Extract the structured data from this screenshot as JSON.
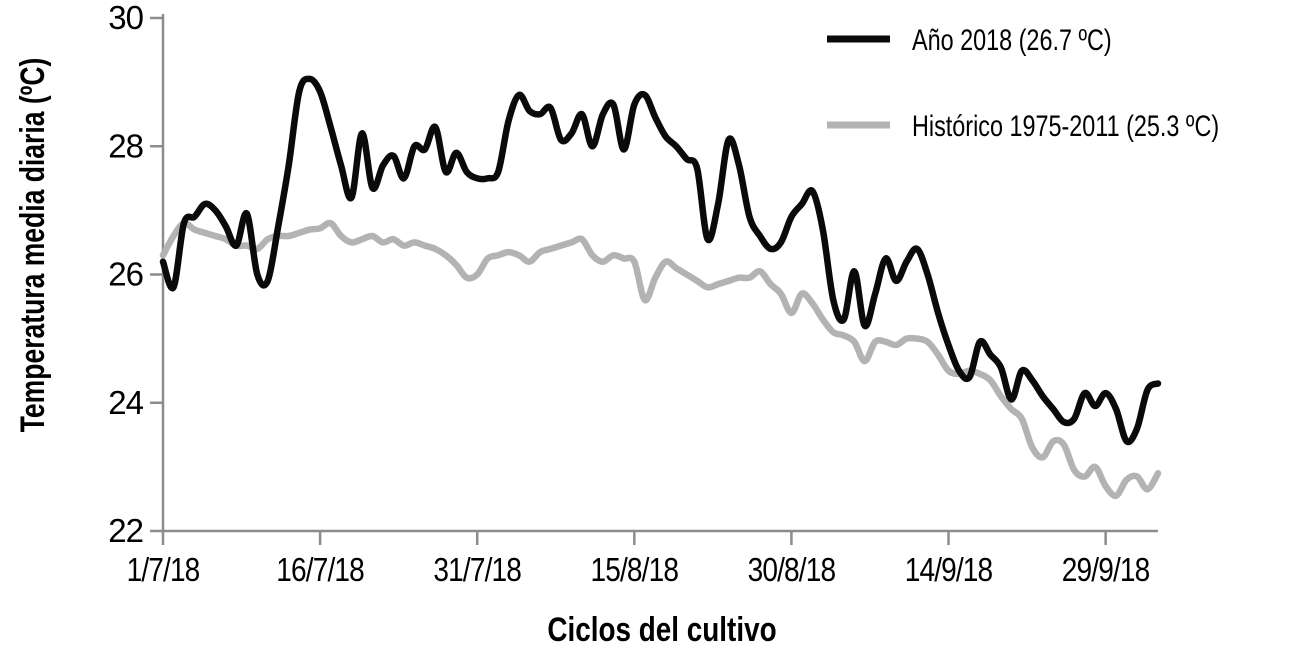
{
  "y_axis": {
    "title": "Temperatura media diaria (ºC)",
    "tick_labels": [
      "30",
      "28",
      "26",
      "24",
      "22"
    ],
    "tick_values": [
      30,
      28,
      26,
      24,
      22
    ]
  },
  "x_axis": {
    "title": "Ciclos del cultivo",
    "tick_labels": [
      "1/7/18",
      "16/7/18",
      "31/7/18",
      "15/8/18",
      "30/8/18",
      "14/9/18",
      "29/9/18"
    ],
    "tick_days": [
      0,
      15,
      30,
      45,
      60,
      75,
      90
    ]
  },
  "legend": {
    "position": "top-right",
    "items": [
      {
        "label": "Año 2018 (26.7 ºC)",
        "color": "#0a0a0a"
      },
      {
        "label": "Histórico 1975-2011 (25.3 ºC)",
        "color": "#b3b3b3"
      }
    ]
  },
  "colors": {
    "series_2018": "#0a0a0a",
    "series_historic": "#b3b3b3",
    "axis": "#8c8c8c",
    "text": "#000000",
    "background": "#ffffff"
  },
  "chart_data": {
    "type": "line",
    "title": "",
    "xlabel": "Ciclos del cultivo",
    "ylabel": "Temperatura media diaria (ºC)",
    "ylim": [
      22,
      30
    ],
    "grid": false,
    "legend_position": "top-right",
    "x_start": "1/7/18",
    "x_end": "4/10/18",
    "x_step_days": 1,
    "x_tick_labels": [
      "1/7/18",
      "16/7/18",
      "31/7/18",
      "15/8/18",
      "30/8/18",
      "14/9/18",
      "29/9/18"
    ],
    "series": [
      {
        "name": "Año 2018 (26.7 ºC)",
        "mean_c": 26.7,
        "color": "#0a0a0a",
        "values": [
          26.2,
          25.8,
          26.8,
          26.9,
          27.1,
          27.0,
          26.75,
          26.45,
          26.95,
          26.0,
          25.9,
          26.75,
          27.7,
          28.85,
          29.05,
          28.85,
          28.3,
          27.7,
          27.2,
          28.2,
          27.35,
          27.7,
          27.85,
          27.5,
          28.0,
          27.95,
          28.3,
          27.6,
          27.9,
          27.6,
          27.5,
          27.5,
          27.6,
          28.4,
          28.8,
          28.55,
          28.5,
          28.6,
          28.1,
          28.2,
          28.5,
          28.0,
          28.5,
          28.65,
          27.95,
          28.65,
          28.8,
          28.45,
          28.15,
          28.0,
          27.8,
          27.65,
          26.55,
          27.1,
          28.1,
          27.7,
          26.9,
          26.6,
          26.4,
          26.5,
          26.9,
          27.1,
          27.3,
          26.7,
          25.6,
          25.3,
          26.05,
          25.2,
          25.7,
          26.25,
          25.9,
          26.2,
          26.4,
          26.0,
          25.4,
          24.9,
          24.5,
          24.4,
          24.95,
          24.75,
          24.55,
          24.05,
          24.5,
          24.35,
          24.1,
          23.9,
          23.7,
          23.75,
          24.15,
          23.95,
          24.15,
          23.9,
          23.4,
          23.6,
          24.2,
          24.3
        ]
      },
      {
        "name": "Histórico 1975-2011 (25.3 ºC)",
        "mean_c": 25.3,
        "color": "#b3b3b3",
        "values": [
          26.3,
          26.6,
          26.8,
          26.7,
          26.65,
          26.6,
          26.55,
          26.45,
          26.45,
          26.4,
          26.55,
          26.6,
          26.6,
          26.65,
          26.7,
          26.72,
          26.8,
          26.6,
          26.5,
          26.55,
          26.6,
          26.5,
          26.55,
          26.45,
          26.5,
          26.45,
          26.4,
          26.3,
          26.15,
          25.95,
          26.0,
          26.25,
          26.3,
          26.35,
          26.3,
          26.2,
          26.35,
          26.4,
          26.45,
          26.5,
          26.55,
          26.3,
          26.2,
          26.3,
          26.25,
          26.2,
          25.6,
          25.95,
          26.2,
          26.1,
          26.0,
          25.9,
          25.8,
          25.85,
          25.9,
          25.95,
          25.95,
          26.05,
          25.85,
          25.7,
          25.4,
          25.7,
          25.55,
          25.3,
          25.1,
          25.05,
          24.95,
          24.65,
          24.95,
          24.95,
          24.9,
          25.0,
          25.0,
          24.95,
          24.75,
          24.5,
          24.45,
          24.5,
          24.45,
          24.35,
          24.1,
          23.9,
          23.75,
          23.3,
          23.15,
          23.4,
          23.35,
          22.95,
          22.85,
          23.0,
          22.7,
          22.55,
          22.8,
          22.85,
          22.65,
          22.9
        ]
      }
    ]
  }
}
